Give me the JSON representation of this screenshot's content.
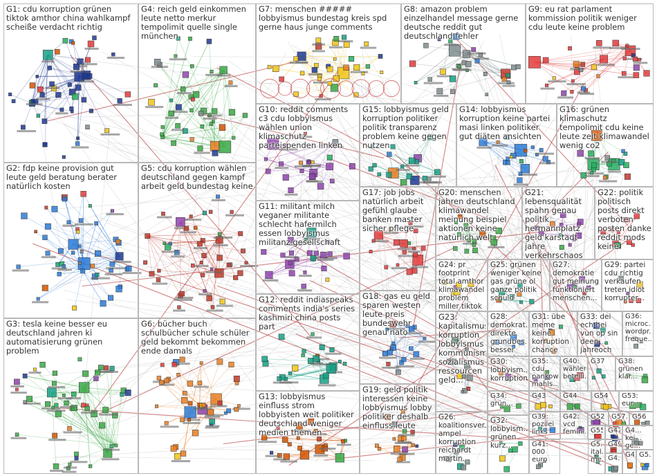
{
  "graph": {
    "background": "#ffffff",
    "box_border": "#b8b8b8",
    "edge_color": "#8a8a8a",
    "accent_edge": "#b03030",
    "node_palette": [
      "#e23b3b",
      "#2d7bd6",
      "#39a845",
      "#f0c419",
      "#8e44ad",
      "#e67e22",
      "#16a085",
      "#1f3a93",
      "#d35400",
      "#7f8c8d",
      "#c0392b",
      "#27ae60"
    ]
  },
  "groups": [
    {
      "id": "G1",
      "label": "G1: cdu korruption grünen tiktok amthor china wahlkampf scheiße verdacht richtig",
      "color": "#1f3a93"
    },
    {
      "id": "G2",
      "label": "G2: fdp keine provision gut leute geld beratung berater natürlich kosten",
      "color": "#2d7bd6"
    },
    {
      "id": "G3",
      "label": "G3: tesla keine besser eu deutschland jahren ki automatisierung grünen problem",
      "color": "#39a845"
    },
    {
      "id": "G4",
      "label": "G4: reich geld einkommen leute netto merkur tempolimit quelle single münchen",
      "color": "#39a845"
    },
    {
      "id": "G5",
      "label": "G5: cdu korruption wählen deutschland gegen kampf arbeit geld bundestag keine",
      "color": "#c0392b"
    },
    {
      "id": "G6",
      "label": "G6: bücher buch schulbücher schule schüler geld bekommt bekommen ende damals",
      "color": "#e67e22"
    },
    {
      "id": "G7",
      "label": "G7: menschen ##### lobbyismus bundestag kreis spd gerne haus junge comments",
      "color": "#f0c419"
    },
    {
      "id": "G8",
      "label": "G8: amazon problem einzelhandel message gerne deutsche reddit gut deutschland fehler",
      "color": "#7f8c8d"
    },
    {
      "id": "G9",
      "label": "G9: eu rat parlament kommission politik weniger cdu leute keine problem",
      "color": "#e23b3b"
    },
    {
      "id": "G10",
      "label": "G10: reddit comments c3 cdu lobbyismus wählen union klimaschutz parteispenden linken",
      "color": "#8e44ad"
    },
    {
      "id": "G11",
      "label": "G11: militant milch veganer militante schlecht hafermilch essen lobbyismus militanz gesellschaft",
      "color": "#8e44ad"
    },
    {
      "id": "G12",
      "label": "G12: reddit indiaspeaks comments india's series kashmiri china posts part",
      "color": "#16a085"
    },
    {
      "id": "G13",
      "label": "G13: lobbyismus einfluss strom lobbyisten weit politiker deutschland weniger medien themen",
      "color": "#d35400"
    },
    {
      "id": "G14",
      "label": "G14: lobbyismus korruption keine partei masi linken politiker gut diäten ansichten",
      "color": "#2d7bd6"
    },
    {
      "id": "G15",
      "label": "G15: lobbyismus geld korruption politiker politik transparenz problem keine gegen nutzen",
      "color": "#16a085"
    },
    {
      "id": "G16",
      "label": "G16: grünen klimaschutz tempolimit cdu keine leute zeit klimawandel wenig co2",
      "color": "#27ae60"
    },
    {
      "id": "G17",
      "label": "G17: job jobs natürlich arbeit gefühl glaube banken master sicher pflege",
      "color": "#e23b3b"
    },
    {
      "id": "G18",
      "label": "G18: gas eu geld sparen westen leute preis bundeswehr genau nato",
      "color": "#2d7bd6"
    },
    {
      "id": "G19",
      "label": "G19: geld politik interessen keine lobbyismus lobby politiker deshalb einfluss leute",
      "color": "#e67e22"
    },
    {
      "id": "G20",
      "label": "G20: menschen jahren deutschland klimawandel meinung beispiel aktionen keine natürlich welt",
      "color": "#39a845"
    },
    {
      "id": "G21",
      "label": "G21: lebensqualität spahn genau politik hermannplatz geld karstadt jahre verkehrschaos wachstum",
      "color": "#8e44ad"
    },
    {
      "id": "G22",
      "label": "G22: politik politisch posts direkt verboten posten danke reddit mods keine",
      "color": "#e23b3b"
    },
    {
      "id": "G23",
      "label": "G23: kapitalismus korruption lobbyismus kommunismus sozialismus ressourcen geld...",
      "color": "#7f8c8d"
    },
    {
      "id": "G24",
      "label": "G24: pr footprint total amthor klimawandel problem miller tiktok wandel bodenhaltung",
      "color": "#f0c419"
    },
    {
      "id": "G25",
      "label": "G25: grünen weniger keine gas grüne ol ganze politik schuld",
      "color": "#16a085"
    },
    {
      "id": "G26",
      "label": "G26: koalitionsver... ampel korruption reichardt martin...",
      "color": "#7f8c8d"
    },
    {
      "id": "G27",
      "label": "G27: demokratie gut meinung funktioniert menschen...",
      "color": "#8e44ad"
    },
    {
      "id": "G28",
      "label": "G28: demokrat... direkte grundbes... besser schweiz...",
      "color": "#2d7bd6"
    },
    {
      "id": "G29",
      "label": "G29: partei cdu richtig verkaufen treten idiot korrupter...",
      "color": "#e23b3b"
    },
    {
      "id": "G30",
      "label": "G30: lobbyism... korruption",
      "color": "#7f8c8d"
    },
    {
      "id": "G31",
      "label": "G31: übe meme keine korruption chance",
      "color": "#e67e22"
    },
    {
      "id": "G32",
      "label": "G32: lobbyism... grünen kurz...",
      "color": "#27ae60"
    },
    {
      "id": "G33",
      "label": "G33: dei ech hei vun op sin deen jahreoch wann...",
      "color": "#1f3a93"
    },
    {
      "id": "G34",
      "label": "G34: grün...",
      "color": "#39a845"
    },
    {
      "id": "G35",
      "label": "G35: cdu pankow mahls...",
      "color": "#8e44ad"
    },
    {
      "id": "G36",
      "label": "G36: microc... wordpr... freque...",
      "color": "#7f8c8d"
    },
    {
      "id": "G37",
      "label": "G37",
      "color": "#16a085"
    },
    {
      "id": "G38",
      "label": "G38: grünen klar...",
      "color": "#39a845"
    },
    {
      "id": "G39",
      "label": "G39: pozilei links",
      "color": "#2d7bd6"
    },
    {
      "id": "G40",
      "label": "G40: wählen beteili...",
      "color": "#e23b3b"
    },
    {
      "id": "G41",
      "label": "G41: 000 euro",
      "color": "#7f8c8d"
    },
    {
      "id": "G42",
      "label": "G42: vcd femini...",
      "color": "#8e44ad"
    },
    {
      "id": "G43",
      "label": "G43",
      "color": "#f0c419"
    },
    {
      "id": "G44",
      "label": "G44",
      "color": "#39a845"
    },
    {
      "id": "G45",
      "label": "G4... kei... ge...",
      "color": "#7f8c8d"
    },
    {
      "id": "G46",
      "label": "G4...",
      "color": "#e67e22"
    },
    {
      "id": "G47",
      "label": "G47",
      "color": "#1f3a93"
    },
    {
      "id": "G48",
      "label": "G4...",
      "color": "#7f8c8d"
    },
    {
      "id": "G49",
      "label": "G49",
      "color": "#e23b3b"
    },
    {
      "id": "G50",
      "label": "G5... ital... me...",
      "color": "#16a085"
    },
    {
      "id": "G51",
      "label": "G5...",
      "color": "#2d7bd6"
    },
    {
      "id": "G52",
      "label": "G52",
      "color": "#8e44ad"
    },
    {
      "id": "G53",
      "label": "G53: eur...",
      "color": "#39a845"
    },
    {
      "id": "G54",
      "label": "G54",
      "color": "#f0c419"
    },
    {
      "id": "G55",
      "label": "G55",
      "color": "#e23b3b"
    },
    {
      "id": "G56",
      "label": "G56",
      "color": "#7f8c8d"
    },
    {
      "id": "G57",
      "label": "G57...",
      "color": "#2d7bd6"
    }
  ]
}
